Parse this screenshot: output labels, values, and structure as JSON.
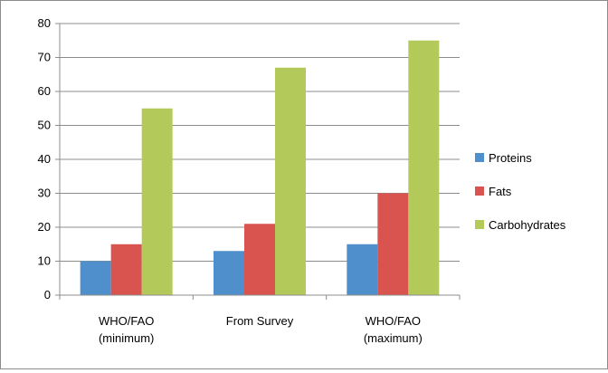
{
  "chart_data": {
    "type": "bar",
    "title": "",
    "xlabel": "",
    "ylabel": "",
    "categories": [
      [
        "WHO/FAO",
        "(minimum)"
      ],
      [
        "From Survey"
      ],
      [
        "WHO/FAO",
        "(maximum)"
      ]
    ],
    "series": [
      {
        "name": "Proteins",
        "color": "#4F8FCC",
        "values": [
          10,
          13,
          15
        ]
      },
      {
        "name": "Fats",
        "color": "#D9534F",
        "values": [
          15,
          21,
          30
        ]
      },
      {
        "name": "Carbohydrates",
        "color": "#B3C95A",
        "values": [
          55,
          67,
          75
        ]
      }
    ],
    "ylim": [
      0,
      80
    ],
    "yticks": [
      "0",
      "10",
      "20",
      "30",
      "40",
      "50",
      "60",
      "70",
      "80"
    ],
    "grid": true,
    "legend_position": "right"
  }
}
